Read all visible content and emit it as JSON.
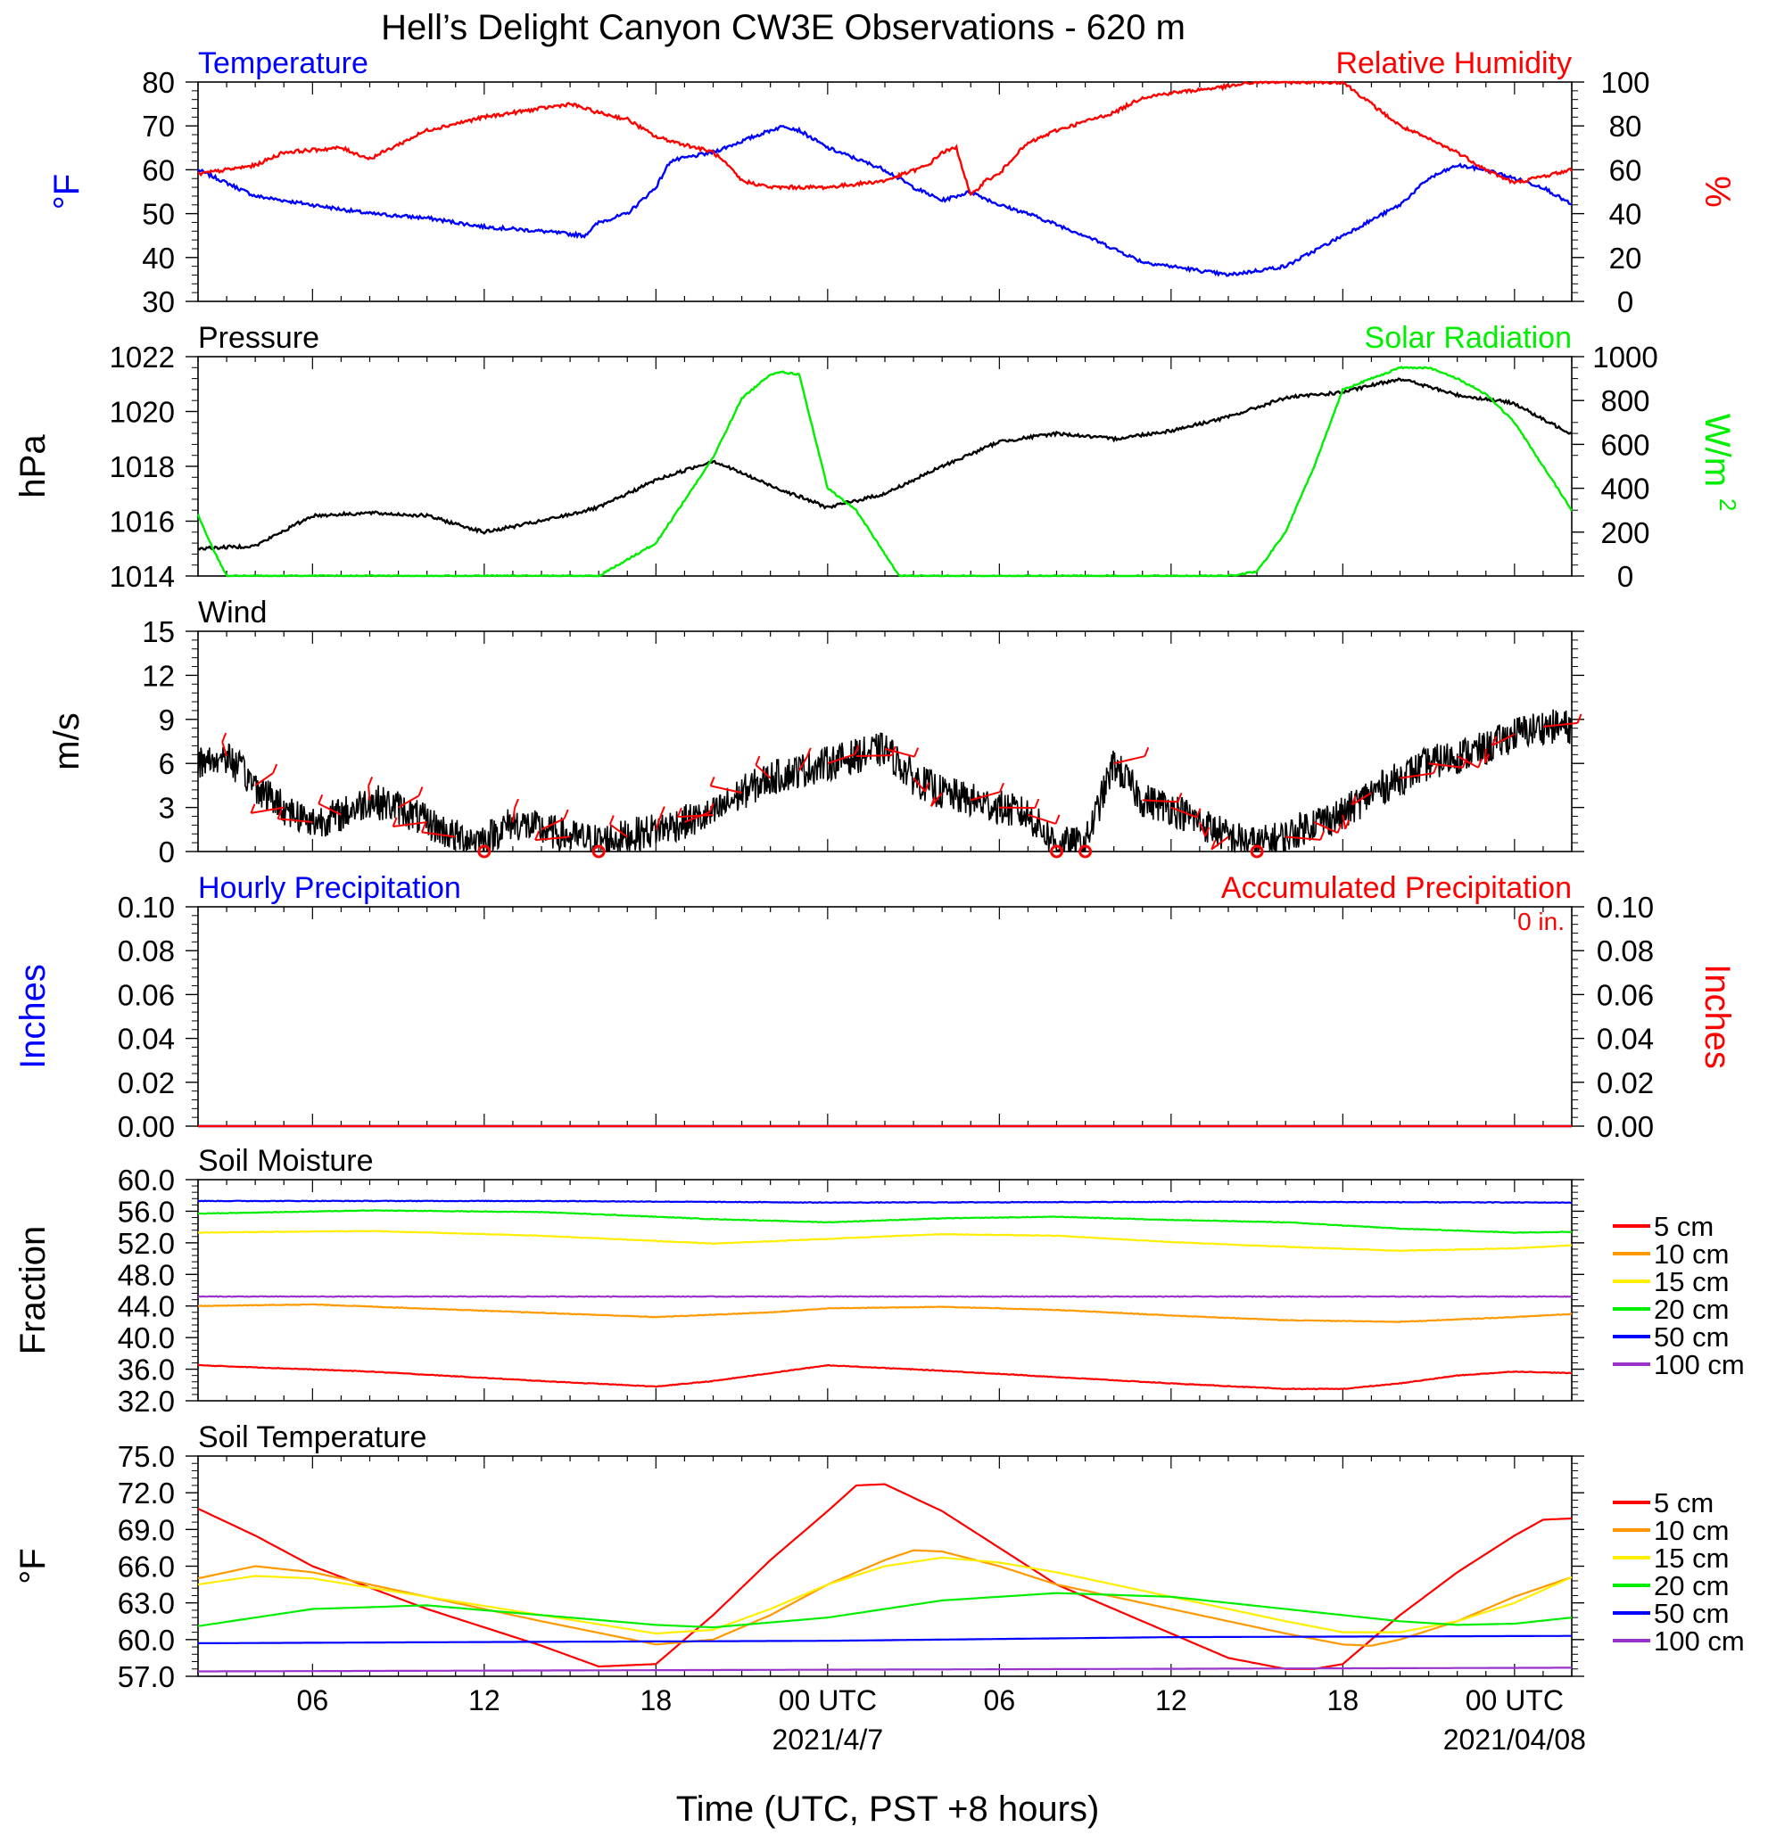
{
  "title": "Hell’s Delight Canyon CW3E Observations - 620 m",
  "xaxis": {
    "label": "Time (UTC, PST +8 hours)",
    "range_hours": [
      -22,
      26
    ],
    "ticks": [
      {
        "h": -18,
        "label": "06"
      },
      {
        "h": -12,
        "label": "12"
      },
      {
        "h": -6,
        "label": "18"
      },
      {
        "h": 0,
        "label": "00 UTC"
      },
      {
        "h": 6,
        "label": "06"
      },
      {
        "h": 12,
        "label": "12"
      },
      {
        "h": 18,
        "label": "18"
      },
      {
        "h": 24,
        "label": "00 UTC"
      }
    ],
    "date_labels": [
      {
        "h": 0,
        "label": "2021/4/7"
      },
      {
        "h": 24,
        "label": "2021/04/08"
      }
    ]
  },
  "colors": {
    "blue": "#0000ff",
    "red": "#ff0000",
    "green": "#00ee00",
    "orange": "#ff9900",
    "yellow": "#ffee00",
    "purple": "#9933cc",
    "black": "#000000"
  },
  "panels": {
    "temp_rh": {
      "left_title": "Temperature",
      "right_title": "Relative Humidity",
      "left_unit": "°F",
      "right_unit": "%",
      "left_ticks": [
        "80",
        "70",
        "60",
        "50",
        "40",
        "30"
      ],
      "right_ticks": [
        "100",
        "80",
        "60",
        "40",
        "20",
        "0"
      ]
    },
    "pressure": {
      "left_title": "Pressure",
      "right_title": "Solar Radiation",
      "left_unit": "hPa",
      "right_unit": "W/m",
      "right_unit_sup": "2",
      "left_ticks": [
        "1022",
        "1020",
        "1018",
        "1016",
        "1014"
      ],
      "right_ticks": [
        "1000",
        "800",
        "600",
        "400",
        "200",
        "0"
      ]
    },
    "wind": {
      "left_title": "Wind",
      "left_unit": "m/s",
      "left_ticks": [
        "15",
        "12",
        "9",
        "6",
        "3",
        "0"
      ]
    },
    "precip": {
      "left_title": "Hourly Precipitation",
      "right_title": "Accumulated Precipitation",
      "left_unit": "Inches",
      "right_unit": "Inches",
      "accum_label": "0 in.",
      "left_ticks": [
        "0.10",
        "0.08",
        "0.06",
        "0.04",
        "0.02",
        "0.00"
      ],
      "right_ticks": [
        "0.10",
        "0.08",
        "0.06",
        "0.04",
        "0.02",
        "0.00"
      ]
    },
    "soil_moisture": {
      "left_title": "Soil Moisture",
      "left_unit": "Fraction",
      "left_ticks": [
        "60.0",
        "56.0",
        "52.0",
        "48.0",
        "44.0",
        "40.0",
        "36.0",
        "32.0"
      ],
      "legend": [
        "5 cm",
        "10 cm",
        "15 cm",
        "20 cm",
        "50 cm",
        "100 cm"
      ]
    },
    "soil_temp": {
      "left_title": "Soil Temperature",
      "left_unit": "°F",
      "left_ticks": [
        "75.0",
        "72.0",
        "69.0",
        "66.0",
        "63.0",
        "60.0",
        "57.0"
      ],
      "legend": [
        "5 cm",
        "10 cm",
        "15 cm",
        "20 cm",
        "50 cm",
        "100 cm"
      ]
    }
  },
  "chart_data": [
    {
      "type": "line",
      "panel": "temp_rh",
      "x_units": "hours relative to 2021-04-07 00 UTC",
      "ylim_left": [
        30,
        80
      ],
      "ylim_right": [
        0,
        100
      ],
      "series": [
        {
          "name": "Temperature",
          "axis": "left",
          "color": "#0000ff",
          "x": [
            -22,
            -20,
            -18,
            -16,
            -14,
            -12,
            -10,
            -8.5,
            -8,
            -7,
            -6,
            -5.5,
            -4,
            -2,
            -1.5,
            -1,
            0,
            2,
            3,
            4,
            5,
            6,
            7,
            9,
            11,
            12,
            13,
            14,
            16,
            18,
            20,
            21,
            22,
            23,
            24,
            25,
            26
          ],
          "y": [
            60,
            54,
            52,
            50,
            49,
            47,
            46,
            45,
            48,
            50,
            56,
            62,
            64,
            69,
            70,
            69,
            65,
            60,
            56,
            53,
            55,
            52,
            50,
            45,
            39,
            38,
            37,
            36,
            38,
            45,
            52,
            58,
            61,
            60,
            58,
            56,
            52
          ]
        },
        {
          "name": "Relative Humidity",
          "axis": "right",
          "color": "#ff0000",
          "x": [
            -22,
            -20,
            -19,
            -17,
            -16,
            -14,
            -12,
            -11,
            -10,
            -9,
            -8.5,
            -8,
            -7,
            -6,
            -4,
            -3.5,
            -3,
            -2,
            0,
            2,
            3.5,
            4,
            4.5,
            5,
            5.5,
            6,
            6.5,
            7,
            8,
            10,
            11,
            12,
            14,
            15,
            16,
            17,
            18,
            19,
            20,
            22,
            23,
            24,
            26
          ],
          "y": [
            58,
            62,
            68,
            70,
            65,
            78,
            84,
            86,
            88,
            90,
            88,
            86,
            83,
            75,
            68,
            62,
            55,
            52,
            52,
            55,
            62,
            68,
            70,
            48,
            55,
            58,
            66,
            72,
            78,
            86,
            93,
            95,
            98,
            100,
            100,
            100,
            100,
            90,
            80,
            68,
            60,
            54,
            60
          ]
        }
      ]
    },
    {
      "type": "line",
      "panel": "pressure",
      "ylim_left": [
        1014,
        1022
      ],
      "ylim_right": [
        0,
        1000
      ],
      "series": [
        {
          "name": "Pressure",
          "axis": "left",
          "color": "#000000",
          "x": [
            -22,
            -20,
            -18,
            -16,
            -14,
            -12,
            -10,
            -8,
            -6,
            -4,
            -2,
            0,
            2,
            4,
            6,
            8,
            10,
            12,
            14,
            16,
            18,
            20,
            22,
            24,
            25,
            26
          ],
          "y": [
            1015.0,
            1015.1,
            1016.2,
            1016.3,
            1016.2,
            1015.6,
            1016.0,
            1016.5,
            1017.5,
            1018.2,
            1017.3,
            1016.5,
            1017.0,
            1018.0,
            1018.9,
            1019.2,
            1019.0,
            1019.3,
            1019.8,
            1020.5,
            1020.7,
            1021.2,
            1020.6,
            1020.3,
            1019.7,
            1019.2
          ]
        },
        {
          "name": "Solar Radiation",
          "axis": "right",
          "color": "#00ee00",
          "x": [
            -22,
            -21.5,
            -21,
            -20,
            -9,
            -8,
            -6,
            -4,
            -3,
            -2,
            -1.7,
            -1,
            0,
            1,
            2,
            2.5,
            3,
            4,
            6,
            8,
            10,
            12,
            13,
            14,
            15,
            16,
            17,
            18,
            19,
            20,
            21,
            22,
            23,
            24,
            25,
            26
          ],
          "y": [
            280,
            130,
            0,
            0,
            0,
            0,
            150,
            540,
            810,
            920,
            930,
            920,
            400,
            300,
            100,
            0,
            0,
            0,
            0,
            0,
            0,
            0,
            0,
            0,
            20,
            200,
            500,
            850,
            900,
            950,
            950,
            900,
            830,
            700,
            500,
            300
          ]
        }
      ]
    },
    {
      "type": "line",
      "panel": "wind",
      "ylim": [
        0,
        15
      ],
      "series": [
        {
          "name": "Wind",
          "color": "#000000",
          "x": [
            -22,
            -21,
            -20,
            -19,
            -18,
            -17,
            -16,
            -15,
            -14,
            -13,
            -12,
            -11,
            -10,
            -9,
            -8,
            -7,
            -6,
            -5,
            -4,
            -3,
            -2,
            -1,
            0,
            1,
            2,
            3,
            4,
            5,
            6,
            7,
            8,
            9,
            10,
            11,
            12,
            13,
            14,
            15,
            16,
            17,
            18,
            19,
            20,
            21,
            22,
            23,
            24,
            25,
            26
          ],
          "y": [
            6,
            6.5,
            4.5,
            3,
            2,
            2.5,
            3.5,
            3,
            2,
            1,
            0.8,
            2,
            1.5,
            1,
            0.7,
            1,
            1.5,
            2,
            2.5,
            4,
            5,
            5.5,
            6,
            6.5,
            7,
            5,
            4,
            3.5,
            3,
            2.5,
            0.5,
            0.5,
            6,
            3.5,
            3,
            2,
            1,
            0.5,
            1,
            2,
            2.5,
            4,
            5,
            6,
            6.5,
            7,
            8,
            8.5,
            8.5
          ]
        }
      ]
    },
    {
      "type": "line",
      "panel": "precip",
      "ylim_left": [
        0,
        0.1
      ],
      "ylim_right": [
        0,
        0.1
      ],
      "series": [
        {
          "name": "Hourly Precipitation",
          "color": "#0000ff",
          "x": [
            -22,
            26
          ],
          "y": [
            0,
            0
          ]
        },
        {
          "name": "Accumulated Precipitation",
          "color": "#ff0000",
          "x": [
            -22,
            26
          ],
          "y": [
            0,
            0
          ]
        }
      ]
    },
    {
      "type": "line",
      "panel": "soil_moisture",
      "ylim": [
        32,
        60
      ],
      "series": [
        {
          "name": "5 cm",
          "color": "#ff0000",
          "x": [
            -22,
            -16,
            -10,
            -6,
            -4,
            0,
            4,
            8,
            12,
            16,
            18,
            20,
            22,
            24,
            26
          ],
          "y": [
            36.5,
            35.7,
            34.5,
            33.8,
            34.5,
            36.5,
            35.8,
            35.0,
            34.2,
            33.5,
            33.5,
            34.2,
            35.2,
            35.7,
            35.5
          ]
        },
        {
          "name": "10 cm",
          "color": "#ff9900",
          "x": [
            -22,
            -18,
            -12,
            -6,
            -2,
            0,
            4,
            8,
            12,
            16,
            20,
            24,
            26
          ],
          "y": [
            44.0,
            44.2,
            43.4,
            42.6,
            43.2,
            43.7,
            43.9,
            43.5,
            42.8,
            42.2,
            42.0,
            42.6,
            43.0
          ]
        },
        {
          "name": "15 cm",
          "color": "#ffee00",
          "x": [
            -22,
            -16,
            -10,
            -4,
            0,
            4,
            8,
            12,
            16,
            20,
            24,
            26
          ],
          "y": [
            53.3,
            53.5,
            52.9,
            51.9,
            52.5,
            53.1,
            52.9,
            52.1,
            51.5,
            51.0,
            51.3,
            51.7
          ]
        },
        {
          "name": "20 cm",
          "color": "#00ee00",
          "x": [
            -22,
            -16,
            -10,
            -4,
            0,
            4,
            8,
            12,
            16,
            20,
            24,
            26
          ],
          "y": [
            55.7,
            56.1,
            55.9,
            55.0,
            54.6,
            55.1,
            55.3,
            54.9,
            54.6,
            53.8,
            53.3,
            53.4
          ]
        },
        {
          "name": "50 cm",
          "color": "#0000ff",
          "x": [
            -22,
            -10,
            0,
            14,
            26
          ],
          "y": [
            57.3,
            57.3,
            57.1,
            57.2,
            57.1
          ]
        },
        {
          "name": "100 cm",
          "color": "#9933cc",
          "x": [
            -22,
            26
          ],
          "y": [
            45.2,
            45.2
          ]
        }
      ]
    },
    {
      "type": "line",
      "panel": "soil_temp",
      "ylim": [
        57,
        75
      ],
      "series": [
        {
          "name": "5 cm",
          "color": "#ff0000",
          "x": [
            -22,
            -20,
            -18,
            -14,
            -10,
            -8,
            -6,
            -4,
            -2,
            0,
            1,
            2,
            4,
            6,
            8,
            10,
            12,
            14,
            16,
            17,
            18,
            20,
            22,
            24,
            25,
            26
          ],
          "y": [
            70.7,
            68.5,
            66.0,
            62.5,
            59.5,
            57.8,
            58.0,
            62.0,
            66.5,
            70.5,
            72.6,
            72.7,
            70.5,
            67.5,
            64.5,
            62.5,
            60.5,
            58.5,
            57.6,
            57.6,
            58.0,
            62.0,
            65.5,
            68.5,
            69.8,
            69.9
          ]
        },
        {
          "name": "10 cm",
          "color": "#ff9900",
          "x": [
            -22,
            -20,
            -18,
            -14,
            -10,
            -6,
            -4,
            -2,
            0,
            2,
            3,
            4,
            6,
            8,
            10,
            12,
            14,
            16,
            18,
            19,
            20,
            22,
            24,
            26
          ],
          "y": [
            65.0,
            66.0,
            65.5,
            63.5,
            61.5,
            59.6,
            60.0,
            62.0,
            64.5,
            66.5,
            67.3,
            67.2,
            66.0,
            64.5,
            63.5,
            62.5,
            61.5,
            60.5,
            59.6,
            59.5,
            60.0,
            61.5,
            63.5,
            65.1
          ]
        },
        {
          "name": "15 cm",
          "color": "#ffee00",
          "x": [
            -22,
            -20,
            -18,
            -14,
            -10,
            -6,
            -4,
            -2,
            0,
            2,
            4,
            6,
            8,
            10,
            12,
            14,
            16,
            18,
            20,
            22,
            24,
            26
          ],
          "y": [
            64.5,
            65.2,
            65.0,
            63.5,
            62.0,
            60.5,
            60.8,
            62.5,
            64.5,
            66.0,
            66.7,
            66.3,
            65.5,
            64.5,
            63.5,
            62.5,
            61.5,
            60.6,
            60.6,
            61.5,
            63.0,
            65.1
          ]
        },
        {
          "name": "20 cm",
          "color": "#00ee00",
          "x": [
            -22,
            -18,
            -14,
            -10,
            -6,
            -4,
            0,
            4,
            8,
            12,
            16,
            20,
            22,
            24,
            26
          ],
          "y": [
            61.1,
            62.5,
            62.8,
            62.0,
            61.2,
            61.0,
            61.8,
            63.2,
            63.8,
            63.5,
            62.5,
            61.5,
            61.2,
            61.3,
            61.8
          ]
        },
        {
          "name": "50 cm",
          "color": "#0000ff",
          "x": [
            -22,
            -12,
            0,
            12,
            26
          ],
          "y": [
            59.7,
            59.8,
            59.9,
            60.2,
            60.3
          ]
        },
        {
          "name": "100 cm",
          "color": "#9933cc",
          "x": [
            -22,
            26
          ],
          "y": [
            57.4,
            57.7
          ]
        }
      ]
    }
  ]
}
